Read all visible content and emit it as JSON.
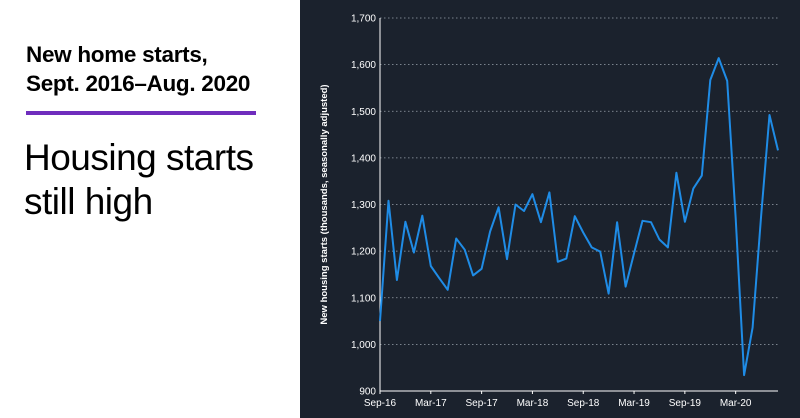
{
  "headline": {
    "line1": "New home starts,",
    "line2": "Sept. 2016–Aug. 2020"
  },
  "subhead": {
    "line1": "Housing starts",
    "line2": "still high"
  },
  "colors": {
    "accent_rule": "#6f2dbd",
    "chart_background": "#1b222d",
    "line": "#1f8ce6",
    "text": "#ffffff"
  },
  "chart_data": {
    "type": "line",
    "title": "",
    "xlabel": "",
    "ylabel": "New housing starts (thousands, seasonally adjusted)",
    "ylim": [
      900,
      1700
    ],
    "yticks": [
      900,
      1000,
      1100,
      1200,
      1300,
      1400,
      1500,
      1600,
      1700
    ],
    "ytick_labels": [
      "900",
      "1,000",
      "1,100",
      "1,200",
      "1,300",
      "1,400",
      "1,500",
      "1,600",
      "1,700"
    ],
    "xtick_labels": [
      "Sep-16",
      "Mar-17",
      "Sep-17",
      "Mar-18",
      "Sep-18",
      "Mar-19",
      "Sep-19",
      "Mar-20"
    ],
    "xtick_months": [
      "2016-09",
      "2017-03",
      "2017-09",
      "2018-03",
      "2018-09",
      "2019-03",
      "2019-09",
      "2020-03"
    ],
    "x_range": [
      "2016-09",
      "2020-08"
    ],
    "grid": "horizontal dotted",
    "legend": "none",
    "series": [
      {
        "name": "",
        "x": [
          "2016-09",
          "2016-10",
          "2016-11",
          "2016-12",
          "2017-01",
          "2017-02",
          "2017-03",
          "2017-04",
          "2017-05",
          "2017-06",
          "2017-07",
          "2017-08",
          "2017-09",
          "2017-10",
          "2017-11",
          "2017-12",
          "2018-01",
          "2018-02",
          "2018-03",
          "2018-04",
          "2018-05",
          "2018-06",
          "2018-07",
          "2018-08",
          "2018-09",
          "2018-10",
          "2018-11",
          "2018-12",
          "2019-01",
          "2019-02",
          "2019-03",
          "2019-04",
          "2019-05",
          "2019-06",
          "2019-07",
          "2019-08",
          "2019-09",
          "2019-10",
          "2019-11",
          "2019-12",
          "2020-01",
          "2020-02",
          "2020-03",
          "2020-04",
          "2020-05",
          "2020-06",
          "2020-07",
          "2020-08"
        ],
        "values": [
          1050,
          1308,
          1138,
          1263,
          1197,
          1276,
          1168,
          1142,
          1117,
          1227,
          1203,
          1148,
          1162,
          1242,
          1294,
          1183,
          1300,
          1286,
          1322,
          1262,
          1326,
          1177,
          1184,
          1275,
          1240,
          1208,
          1199,
          1109,
          1262,
          1124,
          1195,
          1265,
          1262,
          1225,
          1208,
          1368,
          1263,
          1334,
          1362,
          1567,
          1614,
          1565,
          1270,
          934,
          1036,
          1275,
          1492,
          1416
        ]
      }
    ]
  }
}
